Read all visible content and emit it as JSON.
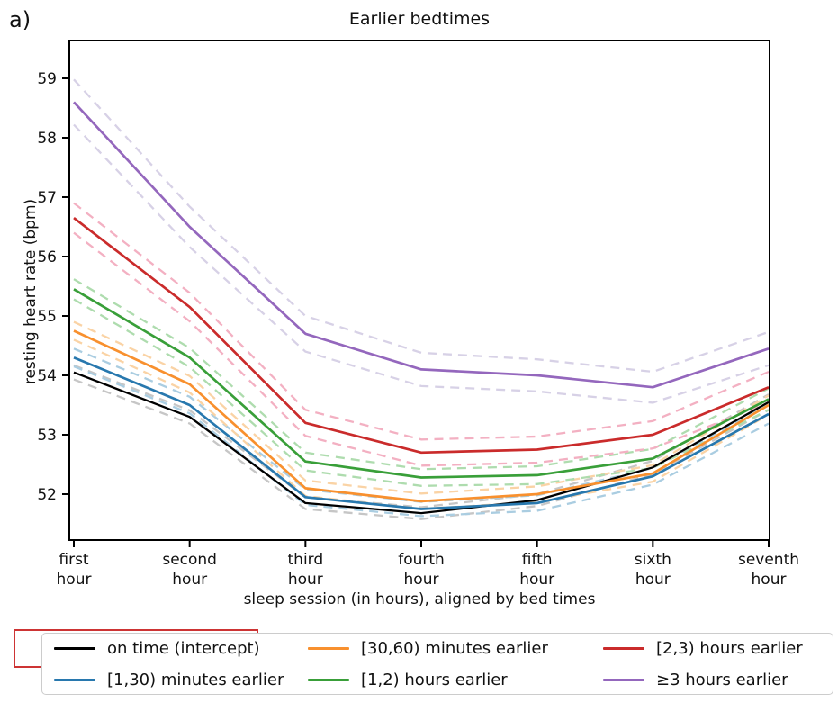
{
  "panel_label": "a)",
  "chart_data": {
    "type": "line",
    "title": "Earlier bedtimes",
    "xlabel": "sleep session (in hours), aligned by bed times",
    "ylabel": "resting heart rate (bpm)",
    "categories": [
      [
        "first",
        "hour"
      ],
      [
        "second",
        "hour"
      ],
      [
        "third",
        "hour"
      ],
      [
        "fourth",
        "hour"
      ],
      [
        "fifth",
        "hour"
      ],
      [
        "sixth",
        "hour"
      ],
      [
        "seventh",
        "hour"
      ]
    ],
    "yticks": [
      52,
      53,
      54,
      55,
      56,
      57,
      58,
      59
    ],
    "ylim": [
      51.2,
      59.65
    ],
    "grid": false,
    "band_style": "dashed",
    "legend_position": "bottom",
    "series": [
      {
        "name": "on time (intercept)",
        "color": "#000000",
        "band_color": "#c6c6c6",
        "values": [
          54.05,
          53.3,
          51.85,
          51.68,
          51.9,
          52.45,
          53.55
        ],
        "band_delta": [
          0.12,
          0.11,
          0.1,
          0.1,
          0.1,
          0.11,
          0.13
        ],
        "highlighted": true
      },
      {
        "name": "[1,30) minutes earlier",
        "color": "#2878ae",
        "band_color": "#aacde1",
        "values": [
          54.3,
          53.5,
          51.95,
          51.75,
          51.85,
          52.3,
          53.35
        ],
        "band_delta": [
          0.15,
          0.14,
          0.13,
          0.12,
          0.13,
          0.14,
          0.16
        ],
        "highlighted": false
      },
      {
        "name": "[30,60) minutes earlier",
        "color": "#f8902e",
        "band_color": "#fad3a5",
        "values": [
          54.75,
          53.85,
          52.1,
          51.88,
          52.0,
          52.35,
          53.5
        ],
        "band_delta": [
          0.15,
          0.14,
          0.13,
          0.13,
          0.13,
          0.14,
          0.16
        ],
        "highlighted": false
      },
      {
        "name": "[1,2) hours earlier",
        "color": "#399f39",
        "band_color": "#aedcae",
        "values": [
          55.45,
          54.3,
          52.55,
          52.28,
          52.32,
          52.6,
          53.6
        ],
        "band_delta": [
          0.17,
          0.16,
          0.15,
          0.14,
          0.15,
          0.16,
          0.18
        ],
        "highlighted": false
      },
      {
        "name": "[2,3) hours earlier",
        "color": "#ca2b2b",
        "band_color": "#f3b0c2",
        "values": [
          56.65,
          55.15,
          53.2,
          52.7,
          52.75,
          53.0,
          53.8
        ],
        "band_delta": [
          0.25,
          0.24,
          0.22,
          0.22,
          0.22,
          0.23,
          0.26
        ],
        "highlighted": false
      },
      {
        "name": "≥3 hours earlier",
        "color": "#9467bd",
        "band_color": "#d7d1e6",
        "values": [
          58.6,
          56.5,
          54.7,
          54.1,
          54.0,
          53.8,
          54.45
        ],
        "band_delta": [
          0.38,
          0.34,
          0.3,
          0.28,
          0.27,
          0.26,
          0.28
        ],
        "highlighted": false
      }
    ],
    "highlight_box_color": "#cd3434"
  }
}
